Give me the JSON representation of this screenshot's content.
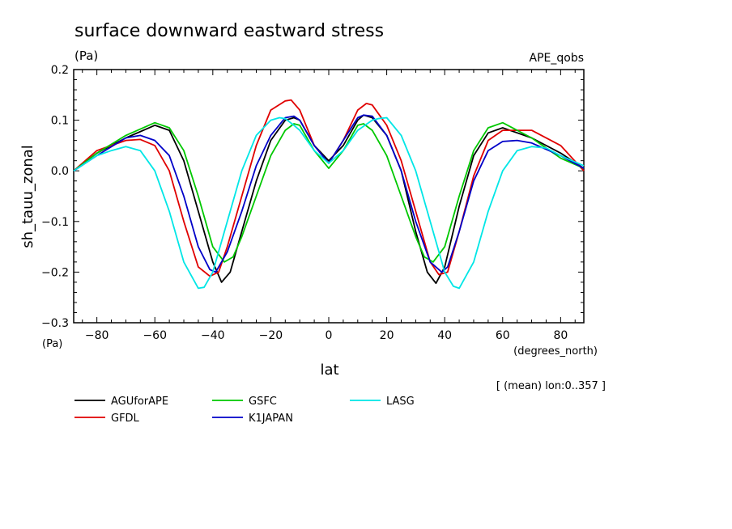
{
  "chart_data": {
    "type": "line",
    "title": "surface downward eastward stress",
    "y_units": "(Pa)",
    "dataset": "APE_qobs",
    "xlabel": "lat",
    "x_units": "(degrees_north)",
    "ylabel": "sh_tauu_zonal",
    "ylabel_units": "(Pa)",
    "note": "[ (mean) lon:0..357 ]",
    "xlim": [
      -88,
      88
    ],
    "ylim": [
      -0.3,
      0.2
    ],
    "x_ticks": [
      -80,
      -60,
      -40,
      -20,
      0,
      20,
      40,
      60,
      80
    ],
    "y_ticks": [
      -0.3,
      -0.2,
      -0.1,
      0.0,
      0.1,
      0.2
    ],
    "x_tick_labels": [
      "−80",
      "−60",
      "−40",
      "−20",
      "0",
      "20",
      "40",
      "60",
      "80"
    ],
    "y_tick_labels": [
      "−0.3",
      "−0.2",
      "−0.1",
      "0.0",
      "0.1",
      "0.2"
    ],
    "legend_position": "bottom",
    "series": [
      {
        "name": "AGUforAPE",
        "color": "#000000",
        "x": [
          -88,
          -80,
          -70,
          -60,
          -55,
          -50,
          -45,
          -40,
          -37,
          -34,
          -30,
          -25,
          -20,
          -15,
          -12,
          -10,
          -5,
          0,
          5,
          10,
          12,
          15,
          20,
          25,
          30,
          34,
          37,
          40,
          45,
          50,
          55,
          60,
          70,
          80,
          88
        ],
        "y": [
          0,
          0.035,
          0.065,
          0.09,
          0.08,
          0.02,
          -0.08,
          -0.18,
          -0.22,
          -0.2,
          -0.12,
          -0.02,
          0.06,
          0.1,
          0.105,
          0.1,
          0.05,
          0.02,
          0.05,
          0.1,
          0.11,
          0.105,
          0.07,
          0.0,
          -0.12,
          -0.2,
          -0.222,
          -0.19,
          -0.07,
          0.03,
          0.075,
          0.085,
          0.065,
          0.035,
          0.005
        ]
      },
      {
        "name": "GFDL",
        "color": "#e00000",
        "x": [
          -88,
          -80,
          -70,
          -65,
          -60,
          -55,
          -50,
          -45,
          -41,
          -38,
          -35,
          -30,
          -25,
          -20,
          -15,
          -13,
          -10,
          -5,
          0,
          5,
          10,
          13,
          15,
          20,
          25,
          30,
          35,
          38,
          41,
          45,
          50,
          55,
          60,
          70,
          80,
          88
        ],
        "y": [
          0,
          0.04,
          0.06,
          0.062,
          0.05,
          0.0,
          -0.1,
          -0.19,
          -0.208,
          -0.2,
          -0.15,
          -0.05,
          0.05,
          0.12,
          0.138,
          0.14,
          0.12,
          0.05,
          0.015,
          0.06,
          0.12,
          0.133,
          0.13,
          0.09,
          0.02,
          -0.08,
          -0.18,
          -0.205,
          -0.2,
          -0.12,
          -0.01,
          0.06,
          0.08,
          0.08,
          0.05,
          0.0
        ]
      },
      {
        "name": "GSFC",
        "color": "#00c800",
        "x": [
          -88,
          -80,
          -70,
          -60,
          -55,
          -50,
          -45,
          -40,
          -36,
          -33,
          -30,
          -25,
          -20,
          -15,
          -12,
          -10,
          -5,
          0,
          5,
          10,
          12,
          15,
          20,
          25,
          30,
          33,
          36,
          40,
          45,
          50,
          55,
          60,
          70,
          80,
          88
        ],
        "y": [
          0,
          0.035,
          0.07,
          0.095,
          0.085,
          0.04,
          -0.05,
          -0.15,
          -0.18,
          -0.17,
          -0.13,
          -0.05,
          0.03,
          0.08,
          0.093,
          0.09,
          0.04,
          0.005,
          0.04,
          0.09,
          0.093,
          0.08,
          0.03,
          -0.05,
          -0.13,
          -0.17,
          -0.18,
          -0.15,
          -0.05,
          0.04,
          0.085,
          0.095,
          0.065,
          0.025,
          0.005
        ]
      },
      {
        "name": "K1JAPAN",
        "color": "#0000c8",
        "x": [
          -88,
          -80,
          -70,
          -65,
          -60,
          -55,
          -50,
          -45,
          -41,
          -39,
          -35,
          -30,
          -25,
          -20,
          -15,
          -12,
          -10,
          -5,
          0,
          5,
          10,
          12,
          15,
          20,
          25,
          30,
          35,
          39,
          41,
          45,
          50,
          55,
          60,
          65,
          70,
          80,
          88
        ],
        "y": [
          0,
          0.03,
          0.065,
          0.07,
          0.06,
          0.03,
          -0.05,
          -0.15,
          -0.195,
          -0.2,
          -0.16,
          -0.08,
          0.01,
          0.07,
          0.105,
          0.108,
          0.1,
          0.05,
          0.015,
          0.06,
          0.105,
          0.11,
          0.108,
          0.07,
          0.0,
          -0.1,
          -0.18,
          -0.2,
          -0.19,
          -0.12,
          -0.02,
          0.04,
          0.058,
          0.06,
          0.055,
          0.03,
          0.005
        ]
      },
      {
        "name": "LASG",
        "color": "#00e6e6",
        "x": [
          -88,
          -80,
          -75,
          -70,
          -65,
          -60,
          -55,
          -50,
          -45,
          -43,
          -40,
          -35,
          -30,
          -25,
          -20,
          -17,
          -15,
          -12,
          -10,
          -5,
          0,
          5,
          10,
          15,
          17,
          20,
          25,
          30,
          35,
          40,
          43,
          45,
          50,
          55,
          60,
          65,
          70,
          75,
          80,
          88
        ],
        "y": [
          0,
          0.03,
          0.04,
          0.048,
          0.04,
          0.0,
          -0.08,
          -0.18,
          -0.232,
          -0.23,
          -0.2,
          -0.1,
          0.0,
          0.07,
          0.1,
          0.105,
          0.103,
          0.09,
          0.08,
          0.04,
          0.015,
          0.04,
          0.08,
          0.1,
          0.103,
          0.105,
          0.07,
          0.0,
          -0.1,
          -0.2,
          -0.228,
          -0.232,
          -0.18,
          -0.08,
          0.0,
          0.04,
          0.048,
          0.045,
          0.03,
          0.01
        ]
      }
    ]
  }
}
